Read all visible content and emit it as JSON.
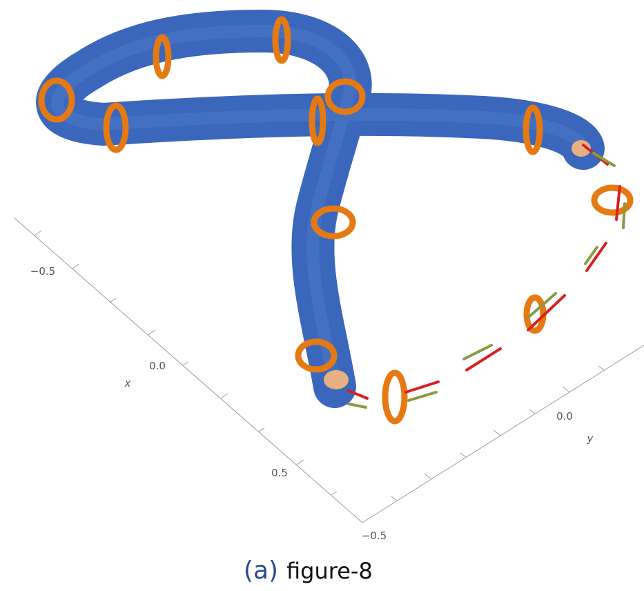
{
  "axes": {
    "x": {
      "label": "x",
      "tick_labels": [
        "−0.5",
        "0.0",
        "0.5"
      ]
    },
    "y": {
      "label": "y",
      "tick_labels": [
        "−0.5",
        "0.0"
      ]
    }
  },
  "caption": {
    "label": "(a)",
    "text": "figure-8"
  }
}
